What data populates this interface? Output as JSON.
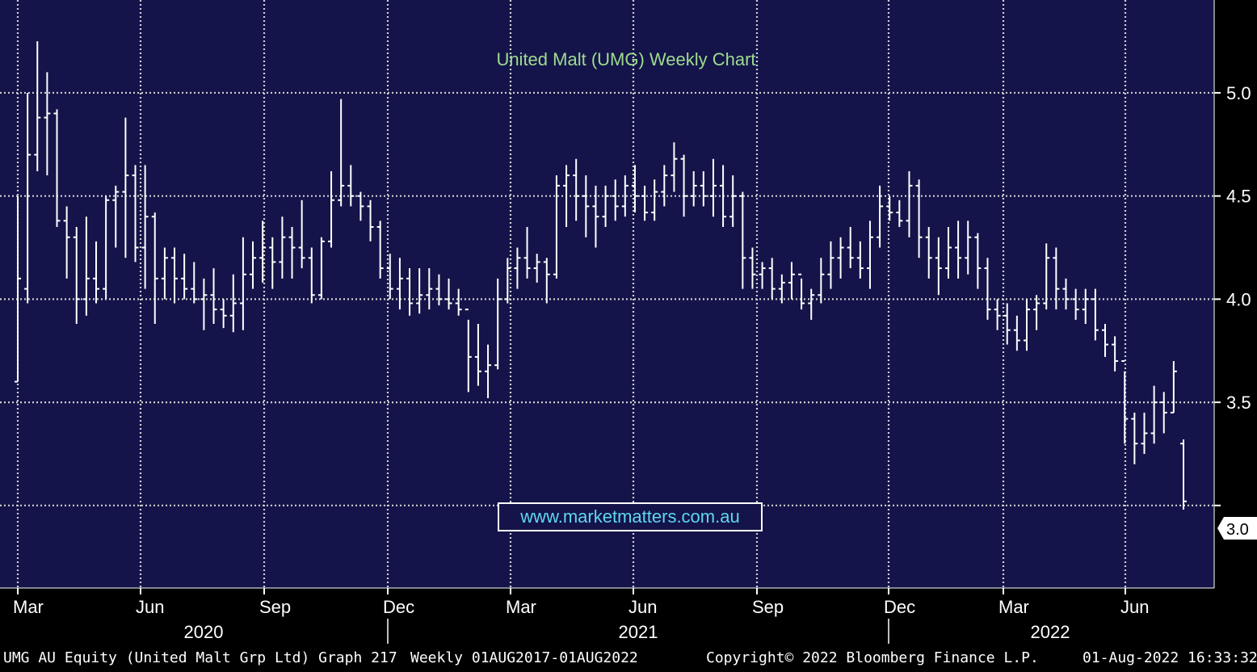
{
  "chart_data": {
    "type": "ohlc",
    "title": "United Malt (UMG) Weekly Chart",
    "ylim": [
      2.6,
      5.45
    ],
    "y_ticks": [
      "5.0",
      "4.5",
      "4.0",
      "3.5",
      "3.0"
    ],
    "last_price_label": "3.0",
    "x_month_labels": [
      "Mar",
      "Jun",
      "Sep",
      "Dec",
      "Mar",
      "Jun",
      "Sep",
      "Dec",
      "Mar",
      "Jun"
    ],
    "x_year_labels": [
      "2020",
      "2021",
      "2022"
    ],
    "grid": true,
    "bars": [
      [
        3.6,
        4.5,
        3.6,
        4.1
      ],
      [
        4.05,
        5.0,
        3.98,
        4.7
      ],
      [
        4.7,
        5.25,
        4.62,
        4.88
      ],
      [
        4.88,
        5.1,
        4.6,
        4.9
      ],
      [
        4.9,
        4.92,
        4.35,
        4.38
      ],
      [
        4.38,
        4.45,
        4.1,
        4.3
      ],
      [
        4.3,
        4.35,
        3.88,
        4.0
      ],
      [
        4.0,
        4.4,
        3.92,
        4.1
      ],
      [
        4.1,
        4.28,
        3.98,
        4.05
      ],
      [
        4.05,
        4.5,
        4.0,
        4.48
      ],
      [
        4.48,
        4.55,
        4.25,
        4.52
      ],
      [
        4.52,
        4.88,
        4.2,
        4.6
      ],
      [
        4.6,
        4.65,
        4.18,
        4.25
      ],
      [
        4.25,
        4.65,
        4.05,
        4.4
      ],
      [
        4.4,
        4.42,
        3.88,
        4.1
      ],
      [
        4.1,
        4.25,
        4.0,
        4.2
      ],
      [
        4.2,
        4.25,
        3.98,
        4.1
      ],
      [
        4.1,
        4.22,
        4.0,
        4.05
      ],
      [
        4.05,
        4.18,
        3.98,
        4.0
      ],
      [
        4.0,
        4.1,
        3.85,
        4.02
      ],
      [
        4.02,
        4.15,
        3.88,
        3.95
      ],
      [
        3.95,
        4.0,
        3.86,
        3.92
      ],
      [
        3.92,
        4.12,
        3.84,
        3.98
      ],
      [
        3.98,
        4.3,
        3.85,
        4.12
      ],
      [
        4.12,
        4.28,
        4.05,
        4.2
      ],
      [
        4.2,
        4.38,
        4.08,
        4.25
      ],
      [
        4.25,
        4.3,
        4.05,
        4.18
      ],
      [
        4.18,
        4.4,
        4.1,
        4.3
      ],
      [
        4.3,
        4.35,
        4.1,
        4.25
      ],
      [
        4.25,
        4.48,
        4.15,
        4.2
      ],
      [
        4.2,
        4.25,
        3.98,
        4.02
      ],
      [
        4.02,
        4.3,
        4.0,
        4.28
      ],
      [
        4.28,
        4.62,
        4.25,
        4.48
      ],
      [
        4.48,
        4.97,
        4.45,
        4.55
      ],
      [
        4.55,
        4.65,
        4.45,
        4.5
      ],
      [
        4.5,
        4.52,
        4.38,
        4.45
      ],
      [
        4.45,
        4.48,
        4.28,
        4.35
      ],
      [
        4.35,
        4.38,
        4.1,
        4.15
      ],
      [
        4.15,
        4.22,
        4.0,
        4.05
      ],
      [
        4.05,
        4.2,
        3.95,
        4.1
      ],
      [
        4.1,
        4.15,
        3.92,
        3.98
      ],
      [
        3.98,
        4.15,
        3.93,
        4.02
      ],
      [
        4.02,
        4.15,
        3.95,
        4.05
      ],
      [
        4.05,
        4.12,
        3.97,
        4.0
      ],
      [
        4.0,
        4.1,
        3.95,
        3.98
      ],
      [
        3.98,
        4.05,
        3.92,
        3.95
      ],
      [
        3.95,
        3.9,
        3.55,
        3.72
      ],
      [
        3.72,
        3.88,
        3.58,
        3.65
      ],
      [
        3.65,
        3.78,
        3.52,
        3.68
      ],
      [
        3.68,
        4.1,
        3.66,
        4.0
      ],
      [
        4.0,
        4.2,
        3.98,
        4.15
      ],
      [
        4.15,
        4.25,
        4.05,
        4.2
      ],
      [
        4.2,
        4.35,
        4.1,
        4.15
      ],
      [
        4.15,
        4.22,
        4.08,
        4.18
      ],
      [
        4.18,
        4.2,
        3.98,
        4.12
      ],
      [
        4.12,
        4.6,
        4.1,
        4.55
      ],
      [
        4.55,
        4.65,
        4.35,
        4.6
      ],
      [
        4.6,
        4.68,
        4.38,
        4.5
      ],
      [
        4.5,
        4.6,
        4.3,
        4.45
      ],
      [
        4.45,
        4.55,
        4.25,
        4.4
      ],
      [
        4.4,
        4.55,
        4.35,
        4.5
      ],
      [
        4.5,
        4.58,
        4.38,
        4.45
      ],
      [
        4.45,
        4.6,
        4.4,
        4.55
      ],
      [
        4.55,
        4.65,
        4.42,
        4.5
      ],
      [
        4.5,
        4.55,
        4.38,
        4.42
      ],
      [
        4.42,
        4.58,
        4.38,
        4.52
      ],
      [
        4.52,
        4.65,
        4.45,
        4.6
      ],
      [
        4.6,
        4.76,
        4.52,
        4.68
      ],
      [
        4.68,
        4.7,
        4.4,
        4.5
      ],
      [
        4.5,
        4.62,
        4.45,
        4.55
      ],
      [
        4.55,
        4.62,
        4.45,
        4.5
      ],
      [
        4.5,
        4.68,
        4.4,
        4.55
      ],
      [
        4.55,
        4.65,
        4.35,
        4.4
      ],
      [
        4.4,
        4.6,
        4.35,
        4.5
      ],
      [
        4.5,
        4.52,
        4.05,
        4.2
      ],
      [
        4.2,
        4.25,
        4.05,
        4.12
      ],
      [
        4.12,
        4.18,
        4.05,
        4.15
      ],
      [
        4.15,
        4.2,
        4.0,
        4.05
      ],
      [
        4.05,
        4.12,
        3.98,
        4.08
      ],
      [
        4.08,
        4.18,
        4.0,
        4.12
      ],
      [
        4.12,
        4.1,
        3.95,
        3.98
      ],
      [
        3.98,
        4.05,
        3.9,
        4.02
      ],
      [
        4.02,
        4.2,
        3.98,
        4.12
      ],
      [
        4.12,
        4.28,
        4.05,
        4.2
      ],
      [
        4.2,
        4.3,
        4.1,
        4.25
      ],
      [
        4.25,
        4.35,
        4.15,
        4.2
      ],
      [
        4.2,
        4.28,
        4.1,
        4.15
      ],
      [
        4.15,
        4.38,
        4.05,
        4.3
      ],
      [
        4.3,
        4.55,
        4.25,
        4.45
      ],
      [
        4.45,
        4.5,
        4.38,
        4.42
      ],
      [
        4.42,
        4.48,
        4.35,
        4.38
      ],
      [
        4.38,
        4.62,
        4.3,
        4.55
      ],
      [
        4.55,
        4.58,
        4.2,
        4.3
      ],
      [
        4.3,
        4.35,
        4.1,
        4.2
      ],
      [
        4.2,
        4.3,
        4.02,
        4.15
      ],
      [
        4.15,
        4.35,
        4.1,
        4.25
      ],
      [
        4.25,
        4.38,
        4.1,
        4.2
      ],
      [
        4.2,
        4.38,
        4.12,
        4.3
      ],
      [
        4.3,
        4.32,
        4.05,
        4.15
      ],
      [
        4.15,
        4.2,
        3.9,
        3.95
      ],
      [
        3.95,
        4.0,
        3.85,
        3.92
      ],
      [
        3.92,
        3.98,
        3.78,
        3.85
      ],
      [
        3.85,
        3.92,
        3.75,
        3.8
      ],
      [
        3.8,
        4.0,
        3.75,
        3.95
      ],
      [
        3.95,
        4.02,
        3.85,
        3.98
      ],
      [
        3.98,
        4.27,
        3.95,
        4.2
      ],
      [
        4.2,
        4.25,
        3.95,
        4.05
      ],
      [
        4.05,
        4.1,
        3.95,
        4.0
      ],
      [
        4.0,
        4.05,
        3.9,
        3.95
      ],
      [
        3.95,
        4.05,
        3.88,
        4.0
      ],
      [
        4.0,
        4.05,
        3.8,
        3.85
      ],
      [
        3.85,
        3.88,
        3.72,
        3.78
      ],
      [
        3.78,
        3.82,
        3.65,
        3.7
      ],
      [
        3.7,
        3.65,
        3.3,
        3.42
      ],
      [
        3.42,
        3.45,
        3.2,
        3.3
      ],
      [
        3.3,
        3.45,
        3.25,
        3.35
      ],
      [
        3.35,
        3.58,
        3.3,
        3.5
      ],
      [
        3.5,
        3.55,
        3.35,
        3.45
      ],
      [
        3.45,
        3.7,
        3.45,
        3.65
      ],
      [
        3.3,
        3.32,
        2.98,
        3.02
      ]
    ]
  },
  "footer": {
    "security": "UMG AU Equity (United Malt Grp Ltd) Graph 217",
    "range": "Weekly 01AUG2017-01AUG2022",
    "copyright": "Copyright© 2022 Bloomberg Finance L.P.",
    "timestamp": "01-Aug-2022 16:33:32"
  },
  "watermark": "www.marketmatters.com.au",
  "colors": {
    "plot_bg": "#14144a",
    "bars": "#ffffff",
    "grid": "#cfcfcf",
    "title": "#9fdc8e",
    "watermark": "#5fd7f0"
  }
}
